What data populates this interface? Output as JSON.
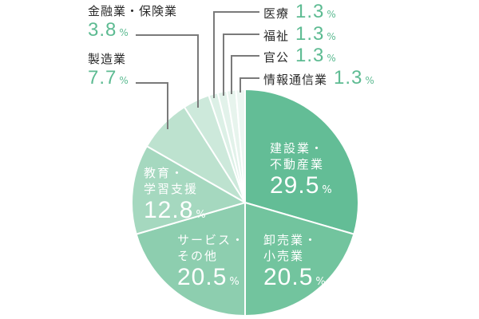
{
  "chart_data": {
    "type": "pie",
    "title": "",
    "start_angle": "12 o'clock, clockwise",
    "categories": [
      "建設業・不動産業",
      "卸売業・小売業",
      "サービス・その他",
      "教育・学習支援",
      "製造業",
      "金融業・保険業",
      "医療",
      "福祉",
      "官公",
      "情報通信業"
    ],
    "values": [
      29.5,
      20.5,
      20.5,
      12.8,
      7.7,
      3.8,
      1.3,
      1.3,
      1.3,
      1.3
    ],
    "unit": "%",
    "colors": [
      "#63bd96",
      "#72c49e",
      "#8dceaf",
      "#a5d8bf",
      "#bde2cf",
      "#cde9db",
      "#dcf0e6",
      "#e2f2ea",
      "#e7f4ed",
      "#edf7f2"
    ]
  },
  "labels": {
    "construction": {
      "line1": "建設業・",
      "line2": "不動産業",
      "value": "29.5",
      "unit": "%"
    },
    "wholesale": {
      "line1": "卸売業・",
      "line2": "小売業",
      "value": "20.5",
      "unit": "%"
    },
    "service": {
      "line1": "サービス・",
      "line2": "その他",
      "value": "20.5",
      "unit": "%"
    },
    "education": {
      "line1": "教育・",
      "line2": "学習支援",
      "value": "12.8",
      "unit": "%"
    },
    "manufacturing": {
      "name": "製造業",
      "value": "7.7",
      "unit": "%"
    },
    "finance": {
      "name": "金融業・保険業",
      "value": "3.8",
      "unit": "%"
    },
    "medical": {
      "name": "医療",
      "value": "1.3",
      "unit": "%"
    },
    "welfare": {
      "name": "福祉",
      "value": "1.3",
      "unit": "%"
    },
    "government": {
      "name": "官公",
      "value": "1.3",
      "unit": "%"
    },
    "it": {
      "name": "情報通信業",
      "value": "1.3",
      "unit": "%"
    }
  },
  "style": {
    "accent": "#5dbb92",
    "leader_line": "#7a7a7a",
    "separator": "#ffffff"
  }
}
